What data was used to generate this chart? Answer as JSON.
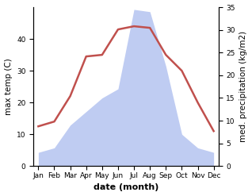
{
  "months": [
    "Jan",
    "Feb",
    "Mar",
    "Apr",
    "May",
    "Jun",
    "Jul",
    "Aug",
    "Sep",
    "Oct",
    "Nov",
    "Dec"
  ],
  "month_indices": [
    0,
    1,
    2,
    3,
    4,
    5,
    6,
    7,
    8,
    9,
    10,
    11
  ],
  "temperature": [
    12.5,
    14.0,
    22.0,
    34.5,
    35.0,
    43.0,
    44.0,
    43.5,
    35.0,
    30.0,
    20.0,
    11.0
  ],
  "precipitation": [
    3.0,
    4.0,
    9.0,
    12.0,
    15.0,
    17.0,
    34.5,
    34.0,
    22.0,
    7.0,
    4.0,
    3.0
  ],
  "temp_color": "#c0504d",
  "precip_fill_color": "#aabbee",
  "precip_fill_alpha": 0.75,
  "ylabel_left": "max temp (C)",
  "ylabel_right": "med. precipitation (kg/m2)",
  "xlabel": "date (month)",
  "ylim_left": [
    0,
    50
  ],
  "ylim_right": [
    0,
    35
  ],
  "bg_color": "#ffffff",
  "label_fontsize": 7.5,
  "tick_fontsize": 6.5,
  "xlabel_fontsize": 8,
  "linewidth": 1.8
}
